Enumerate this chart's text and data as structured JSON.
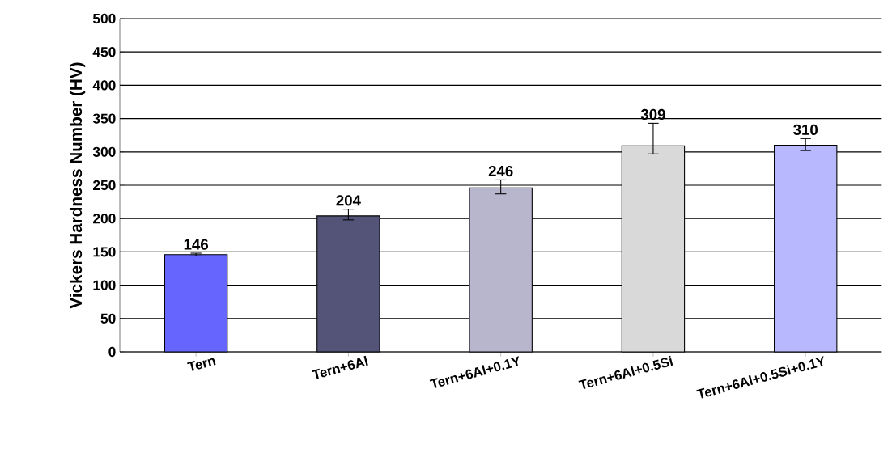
{
  "chart_data": {
    "type": "bar",
    "ylabel": "Vickers Hardness Number (HV)",
    "categories": [
      "Tern",
      "Tern+6Al",
      "Tern+6Al+0.1Y",
      "Tern+6Al+0.5Si",
      "Tern+6Al+0.5Si+0.1Y"
    ],
    "values": [
      146,
      204,
      246,
      309,
      310
    ],
    "colors": [
      "#6666ff",
      "#545479",
      "#b8b6cc",
      "#d9d9d9",
      "#b8b8ff"
    ],
    "errors": [
      [
        144,
        148
      ],
      [
        198,
        214
      ],
      [
        237,
        258
      ],
      [
        297,
        343
      ],
      [
        302,
        320
      ]
    ],
    "data_labels": true,
    "ylim": [
      0,
      500
    ],
    "yticks": [
      0,
      50,
      100,
      150,
      200,
      250,
      300,
      350,
      400,
      450,
      500
    ],
    "grid": "y"
  }
}
